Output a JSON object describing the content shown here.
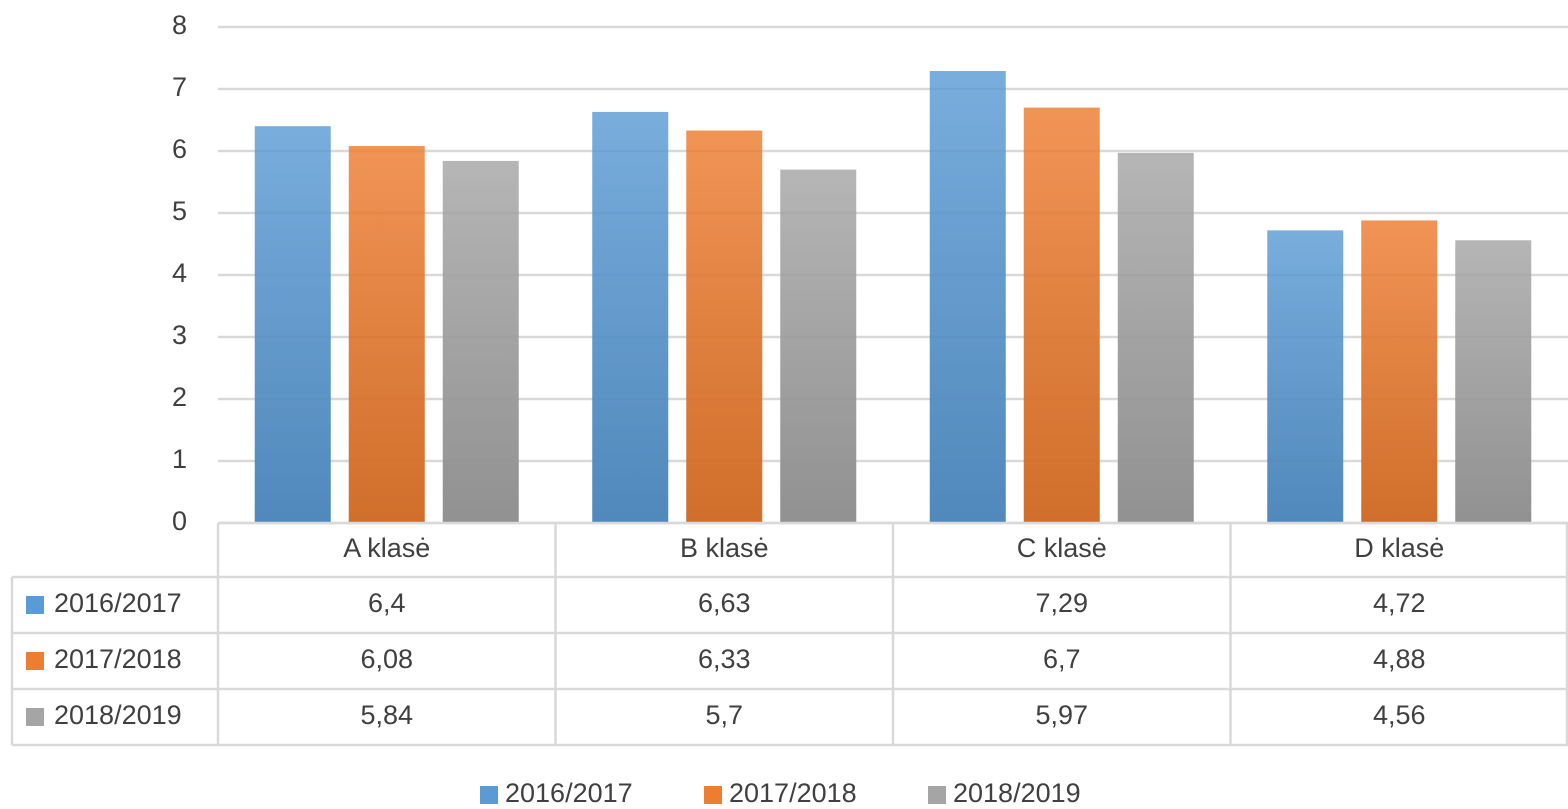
{
  "chart_data": {
    "type": "bar",
    "categories": [
      "A klasė",
      "B klasė",
      "C klasė",
      "D klasė"
    ],
    "series": [
      {
        "name": "2016/2017",
        "color": "#5b9bd5",
        "values": [
          6.4,
          6.63,
          7.29,
          4.72
        ],
        "value_labels": [
          "6,4",
          "6,63",
          "7,29",
          "4,72"
        ]
      },
      {
        "name": "2017/2018",
        "color": "#ed7d31",
        "values": [
          6.08,
          6.33,
          6.7,
          4.88
        ],
        "value_labels": [
          "6,08",
          "6,33",
          "6,7",
          "4,88"
        ]
      },
      {
        "name": "2018/2019",
        "color": "#a5a5a5",
        "values": [
          5.84,
          5.7,
          5.97,
          4.56
        ],
        "value_labels": [
          "5,84",
          "5,7",
          "5,97",
          "4,56"
        ]
      }
    ],
    "ylim": [
      0,
      8
    ],
    "yticks": [
      0,
      1,
      2,
      3,
      4,
      5,
      6,
      7,
      8
    ],
    "grid": true,
    "legend": "bottom"
  }
}
